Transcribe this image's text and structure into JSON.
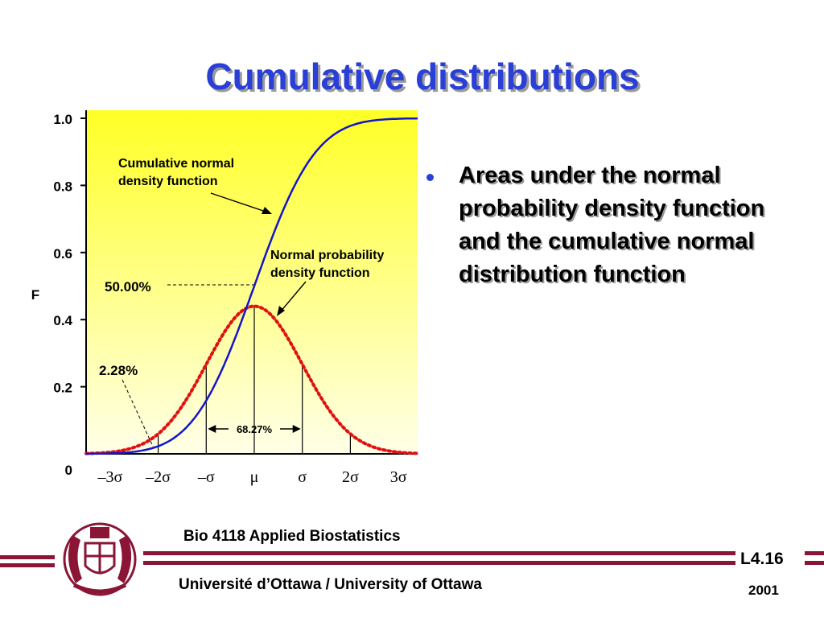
{
  "slide": {
    "title": "Cumulative distributions",
    "bullet": "Areas under the normal probability density function and the cumulative normal distribution function"
  },
  "footer": {
    "course": "Bio 4118 Applied Biostatistics",
    "university": "Université d’Ottawa / University of Ottawa",
    "slide_number": "L4.16",
    "year": "2001"
  },
  "colors": {
    "title": "#2a3fd6",
    "cdf_line": "#1515cc",
    "pdf_line": "#e01010",
    "plot_bg_top": "#ffff26",
    "plot_bg_bottom": "#ffffe8",
    "brand": "#8a1535"
  },
  "chart_data": {
    "type": "line",
    "ylabel": "F",
    "ylim": [
      0,
      1.0
    ],
    "xlim": [
      -3.5,
      3.4
    ],
    "y_ticks": [
      "0",
      "0.2",
      "0.4",
      "0.6",
      "0.8",
      "1.0"
    ],
    "y_tick_values": [
      0,
      0.2,
      0.4,
      0.6,
      0.8,
      1.0
    ],
    "x_ticks": [
      "–3σ",
      "–2σ",
      "–σ",
      "μ",
      "σ",
      "2σ",
      "3σ"
    ],
    "x_tick_values": [
      -3,
      -2,
      -1,
      0,
      1,
      2,
      3
    ],
    "series": [
      {
        "name": "Cumulative normal density function",
        "style": "solid",
        "color": "#1515cc",
        "function": "normal_cdf"
      },
      {
        "name": "Normal probability density function",
        "style": "dotted",
        "color": "#e01010",
        "function": "normal_pdf",
        "peak": 0.44
      }
    ],
    "annotations": {
      "cdf_label": [
        "Cumulative normal",
        "density function"
      ],
      "pdf_label": [
        "Normal probability",
        "density function"
      ],
      "fifty": {
        "text": "50.00%",
        "x": 0,
        "y": 0.5
      },
      "two_pct": {
        "text": "2.28%",
        "x": -2,
        "y": 0.0228
      },
      "range": {
        "text": "68.27%",
        "from": -1,
        "to": 1
      }
    }
  }
}
